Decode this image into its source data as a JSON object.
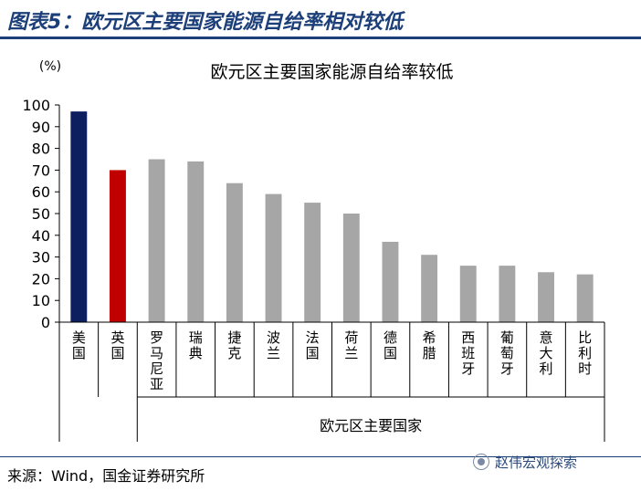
{
  "figure": {
    "label": "图表5：欧元区主要国家能源自给率相对较低",
    "source": "来源：Wind，国金证券研究所",
    "watermark": "赵伟宏观探索"
  },
  "colors": {
    "accent": "#1c3f7a",
    "us": "#0d1f5e",
    "uk": "#c00000",
    "eurozone": "#a6a6a6"
  },
  "chart_data": {
    "type": "bar",
    "title": "欧元区主要国家能源自给率较低",
    "ylabel": "(%)",
    "xlabel": "",
    "ylim": [
      0,
      100
    ],
    "yticks": [
      0,
      10,
      20,
      30,
      40,
      50,
      60,
      70,
      80,
      90,
      100
    ],
    "grid": false,
    "categories": [
      "美国",
      "英国",
      "罗马尼亚",
      "瑞典",
      "捷克",
      "波兰",
      "法国",
      "荷兰",
      "德国",
      "希腊",
      "西班牙",
      "葡萄牙",
      "意大利",
      "比利时"
    ],
    "values": [
      97,
      70,
      75,
      74,
      64,
      59,
      55,
      50,
      37,
      31,
      26,
      26,
      23,
      22
    ],
    "bar_colors": [
      "#0d1f5e",
      "#c00000",
      "#a6a6a6",
      "#a6a6a6",
      "#a6a6a6",
      "#a6a6a6",
      "#a6a6a6",
      "#a6a6a6",
      "#a6a6a6",
      "#a6a6a6",
      "#a6a6a6",
      "#a6a6a6",
      "#a6a6a6",
      "#a6a6a6"
    ],
    "group_label": "欧元区主要国家",
    "group_start": 2
  }
}
